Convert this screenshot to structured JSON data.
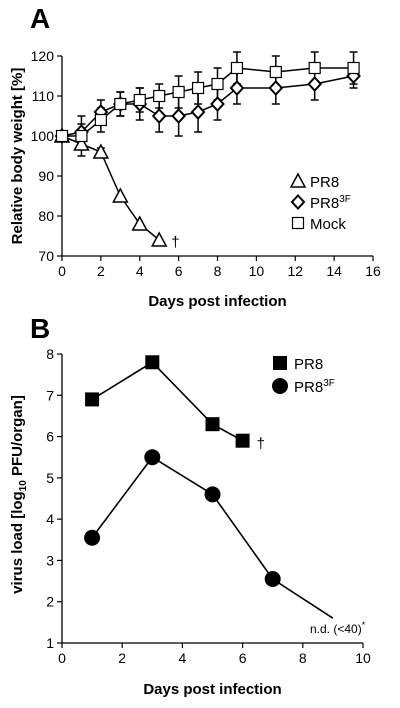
{
  "chart_data": [
    {
      "panel": "A",
      "type": "line",
      "xlabel": "Days post infection",
      "ylabel": "Relative body weight [%]",
      "xlim": [
        0,
        16
      ],
      "ylim": [
        70,
        120
      ],
      "xticks": [
        0,
        2,
        4,
        6,
        8,
        10,
        12,
        14,
        16
      ],
      "yticks": [
        70,
        80,
        90,
        100,
        110,
        120
      ],
      "grid": false,
      "legend_position": "right",
      "series": [
        {
          "name": "PR8",
          "marker": "triangle",
          "x": [
            0,
            1,
            2,
            3,
            4,
            5
          ],
          "y": [
            100,
            98,
            96,
            85,
            78,
            74
          ],
          "err": [
            0,
            1,
            1,
            0,
            0,
            0
          ],
          "end_mark": "†"
        },
        {
          "name": "PR8",
          "name_sup": "3F",
          "marker": "diamond",
          "x": [
            0,
            1,
            2,
            3,
            4,
            5,
            6,
            7,
            8,
            9,
            11,
            13,
            15
          ],
          "y": [
            100,
            101,
            106,
            108,
            108,
            105,
            105,
            106,
            108,
            112,
            112,
            113,
            115
          ],
          "err": [
            0,
            2,
            3,
            3,
            4,
            4,
            5,
            5,
            4,
            4,
            4,
            4,
            3
          ]
        },
        {
          "name": "Mock",
          "marker": "square",
          "x": [
            0,
            1,
            2,
            3,
            4,
            5,
            6,
            7,
            8,
            9,
            11,
            13,
            15
          ],
          "y": [
            100,
            100,
            104,
            108,
            109,
            110,
            111,
            112,
            113,
            117,
            116,
            117,
            117
          ],
          "err": [
            0,
            5,
            3,
            3,
            3,
            3,
            4,
            4,
            4,
            4,
            4,
            4,
            4
          ]
        }
      ]
    },
    {
      "panel": "B",
      "type": "line",
      "xlabel": "Days post infection",
      "ylabel_parts": [
        "virus load [log",
        "10",
        " PFU/organ]"
      ],
      "xlim": [
        0,
        10
      ],
      "ylim": [
        1,
        8
      ],
      "xticks": [
        0,
        2,
        4,
        6,
        8,
        10
      ],
      "yticks": [
        1,
        2,
        3,
        4,
        5,
        6,
        7,
        8
      ],
      "grid": false,
      "legend_position": "top-right",
      "series": [
        {
          "name": "PR8",
          "marker": "filled-square",
          "x": [
            1,
            3,
            5,
            6
          ],
          "y": [
            6.9,
            7.8,
            6.3,
            5.9
          ],
          "end_mark": "†"
        },
        {
          "name": "PR8",
          "name_sup": "3F",
          "marker": "filled-circle",
          "x": [
            1,
            3,
            5,
            7,
            9
          ],
          "y": [
            3.55,
            5.5,
            4.6,
            2.55,
            1.6
          ],
          "marker_count": 4
        }
      ],
      "annotation": "n.d. (<40)",
      "annotation_sup": "*"
    }
  ]
}
